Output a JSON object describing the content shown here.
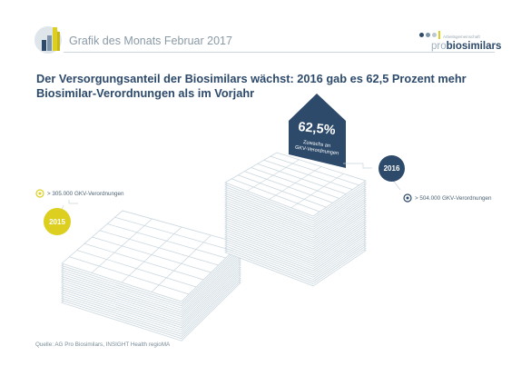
{
  "header": {
    "title": "Grafik des Monats Februar 2017",
    "brand_tagline": "Arbeitsgemeinschaft",
    "brand_pro": "pro",
    "brand_name": "biosimilars"
  },
  "headline": "Der Versorgungsanteil der Biosimilars wächst: 2016 gab es 62,5 Prozent mehr Biosimilar-Verordnungen als im Vorjahr",
  "left_stack": {
    "year": "2015",
    "label": "> 305.000 GKV-Verordnungen",
    "color": "#dccf1f"
  },
  "right_stack": {
    "year": "2016",
    "label": "> 504.000 GKV-Verordnungen",
    "color": "#2d4a6b"
  },
  "callout": {
    "value": "62,5%",
    "line1": "Zuwachs an",
    "line2": "GKV-Verordnungen"
  },
  "source": "Quelle:   AG Pro Biosimilars, INSIGHT Health regioMA",
  "colors": {
    "navy": "#2d4a6b",
    "yellow": "#dccf1f",
    "grey": "#c9d6de"
  }
}
